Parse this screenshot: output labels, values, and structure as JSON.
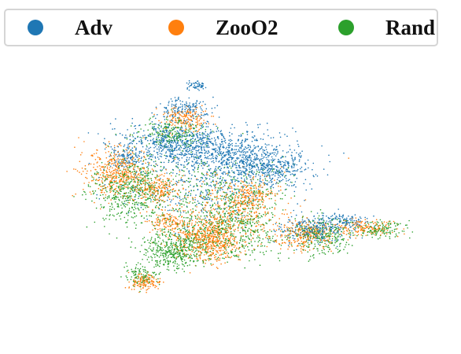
{
  "chart_data": {
    "type": "scatter",
    "title": "",
    "xlabel": "",
    "ylabel": "",
    "axes_visible": false,
    "grid": false,
    "legend_placement": "top",
    "point_size": "tiny",
    "x_range": [
      -1.0,
      1.0
    ],
    "y_range": [
      -1.0,
      1.0
    ],
    "series": [
      {
        "name": "Adv",
        "color": "#1f77b4",
        "clusters": [
          {
            "center": [
              -0.27,
              0.38
            ],
            "spread": [
              0.14,
              0.07
            ],
            "share": 0.24
          },
          {
            "center": [
              0.03,
              0.29
            ],
            "spread": [
              0.16,
              0.08
            ],
            "share": 0.26
          },
          {
            "center": [
              0.22,
              0.19
            ],
            "spread": [
              0.1,
              0.06
            ],
            "share": 0.12
          },
          {
            "center": [
              -0.23,
              0.62
            ],
            "spread": [
              0.07,
              0.04
            ],
            "share": 0.06
          },
          {
            "center": [
              -0.16,
              0.79
            ],
            "spread": [
              0.03,
              0.02
            ],
            "share": 0.02
          },
          {
            "center": [
              0.43,
              -0.23
            ],
            "spread": [
              0.08,
              0.05
            ],
            "share": 0.09
          },
          {
            "center": [
              -0.52,
              0.28
            ],
            "spread": [
              0.04,
              0.04
            ],
            "share": 0.04
          },
          {
            "center": [
              -0.15,
              0.05
            ],
            "spread": [
              0.2,
              0.14
            ],
            "share": 0.12
          },
          {
            "center": [
              0.58,
              -0.18
            ],
            "spread": [
              0.07,
              0.03
            ],
            "share": 0.05
          }
        ]
      },
      {
        "name": "ZooO2",
        "color": "#ff7f0e",
        "clusters": [
          {
            "center": [
              -0.56,
              0.17
            ],
            "spread": [
              0.08,
              0.09
            ],
            "share": 0.18
          },
          {
            "center": [
              -0.1,
              -0.3
            ],
            "spread": [
              0.08,
              0.08
            ],
            "share": 0.22
          },
          {
            "center": [
              0.39,
              -0.27
            ],
            "spread": [
              0.07,
              0.05
            ],
            "share": 0.1
          },
          {
            "center": [
              -0.22,
              0.55
            ],
            "spread": [
              0.06,
              0.04
            ],
            "share": 0.07
          },
          {
            "center": [
              -0.35,
              0.05
            ],
            "spread": [
              0.06,
              0.05
            ],
            "share": 0.08
          },
          {
            "center": [
              -0.42,
              -0.6
            ],
            "spread": [
              0.04,
              0.03
            ],
            "share": 0.05
          },
          {
            "center": [
              0.7,
              -0.22
            ],
            "spread": [
              0.08,
              0.03
            ],
            "share": 0.06
          },
          {
            "center": [
              0.05,
              -0.1
            ],
            "spread": [
              0.14,
              0.12
            ],
            "share": 0.14
          },
          {
            "center": [
              -0.3,
              -0.18
            ],
            "spread": [
              0.06,
              0.05
            ],
            "share": 0.05
          },
          {
            "center": [
              0.12,
              0.02
            ],
            "spread": [
              0.05,
              0.05
            ],
            "share": 0.05
          }
        ]
      },
      {
        "name": "Rand",
        "color": "#2ca02c",
        "clusters": [
          {
            "center": [
              -0.5,
              0.05
            ],
            "spread": [
              0.1,
              0.12
            ],
            "share": 0.2
          },
          {
            "center": [
              -0.28,
              -0.38
            ],
            "spread": [
              0.08,
              0.07
            ],
            "share": 0.16
          },
          {
            "center": [
              0.0,
              -0.25
            ],
            "spread": [
              0.14,
              0.09
            ],
            "share": 0.18
          },
          {
            "center": [
              0.48,
              -0.28
            ],
            "spread": [
              0.08,
              0.06
            ],
            "share": 0.1
          },
          {
            "center": [
              -0.28,
              0.45
            ],
            "spread": [
              0.08,
              0.06
            ],
            "share": 0.08
          },
          {
            "center": [
              0.78,
              -0.23
            ],
            "spread": [
              0.06,
              0.03
            ],
            "share": 0.05
          },
          {
            "center": [
              -0.08,
              0.0
            ],
            "spread": [
              0.2,
              0.14
            ],
            "share": 0.16
          },
          {
            "center": [
              -0.44,
              -0.56
            ],
            "spread": [
              0.04,
              0.04
            ],
            "share": 0.04
          },
          {
            "center": [
              0.12,
              -0.05
            ],
            "spread": [
              0.1,
              0.1
            ],
            "share": 0.03
          }
        ]
      }
    ]
  }
}
